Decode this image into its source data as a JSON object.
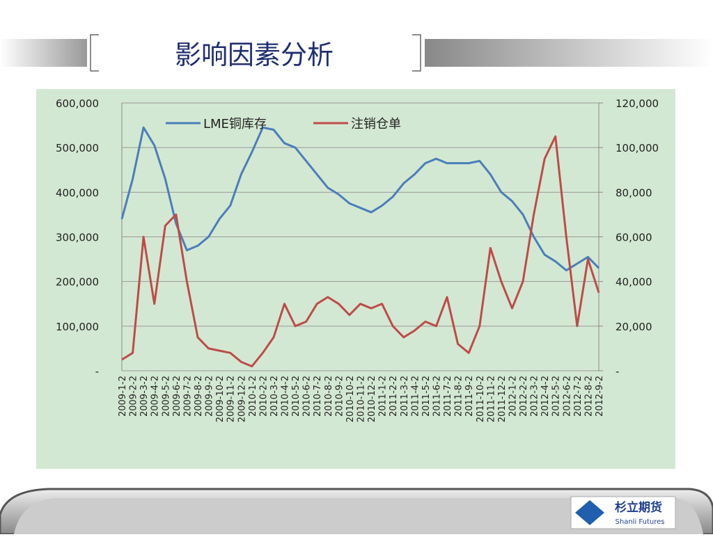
{
  "slide": {
    "title": "影响因素分析",
    "logo_cn": "杉立期货",
    "logo_en": "Shanli Futures"
  },
  "chart_data": {
    "type": "line",
    "categories": [
      "2009-1-2",
      "2009-2-2",
      "2009-3-2",
      "2009-4-2",
      "2009-5-2",
      "2009-6-2",
      "2009-7-2",
      "2009-8-2",
      "2009-9-2",
      "2009-10-2",
      "2009-11-2",
      "2009-12-2",
      "2010-1-2",
      "2010-2-2",
      "2010-3-2",
      "2010-4-2",
      "2010-5-2",
      "2010-6-2",
      "2010-7-2",
      "2010-8-2",
      "2010-9-2",
      "2010-10-2",
      "2010-11-2",
      "2010-12-2",
      "2011-1-2",
      "2011-2-2",
      "2011-3-2",
      "2011-4-2",
      "2011-5-2",
      "2011-6-2",
      "2011-7-2",
      "2011-8-2",
      "2011-9-2",
      "2011-10-2",
      "2011-11-2",
      "2011-12-2",
      "2012-1-2",
      "2012-2-2",
      "2012-3-2",
      "2012-4-2",
      "2012-5-2",
      "2012-6-2",
      "2012-7-2",
      "2012-8-2",
      "2012-9-2"
    ],
    "series": [
      {
        "name": "LME铜库存",
        "color": "#4a7ebb",
        "axis": "y",
        "values": [
          340000,
          430000,
          545000,
          505000,
          430000,
          330000,
          270000,
          280000,
          300000,
          340000,
          370000,
          440000,
          490000,
          545000,
          540000,
          510000,
          500000,
          470000,
          440000,
          410000,
          395000,
          375000,
          365000,
          355000,
          370000,
          390000,
          420000,
          440000,
          465000,
          475000,
          465000,
          465000,
          465000,
          470000,
          440000,
          400000,
          380000,
          350000,
          300000,
          260000,
          245000,
          225000,
          240000,
          255000,
          230000
        ]
      },
      {
        "name": "注销仓单",
        "color": "#be4b48",
        "axis": "y2",
        "values": [
          5000,
          8000,
          60000,
          30000,
          65000,
          70000,
          40000,
          15000,
          10000,
          9000,
          8000,
          4000,
          2000,
          8000,
          15000,
          30000,
          20000,
          22000,
          30000,
          33000,
          30000,
          25000,
          30000,
          28000,
          30000,
          20000,
          15000,
          18000,
          22000,
          20000,
          33000,
          12000,
          8000,
          20000,
          55000,
          40000,
          28000,
          40000,
          70000,
          95000,
          105000,
          60000,
          20000,
          50000,
          35000
        ]
      }
    ],
    "ylim": [
      0,
      600000
    ],
    "yticks": [
      {
        "value": 0,
        "label": "-"
      },
      {
        "value": 100000,
        "label": "100,000"
      },
      {
        "value": 200000,
        "label": "200,000"
      },
      {
        "value": 300000,
        "label": "300,000"
      },
      {
        "value": 400000,
        "label": "400,000"
      },
      {
        "value": 500000,
        "label": "500,000"
      },
      {
        "value": 600000,
        "label": "600,000"
      }
    ],
    "y2lim": [
      0,
      120000
    ],
    "y2ticks": [
      {
        "value": 0,
        "label": "-"
      },
      {
        "value": 20000,
        "label": "20,000"
      },
      {
        "value": 40000,
        "label": "40,000"
      },
      {
        "value": 60000,
        "label": "60,000"
      },
      {
        "value": 80000,
        "label": "80,000"
      },
      {
        "value": 100000,
        "label": "100,000"
      },
      {
        "value": 120000,
        "label": "120,000"
      }
    ],
    "grid": true,
    "legend": "top"
  }
}
